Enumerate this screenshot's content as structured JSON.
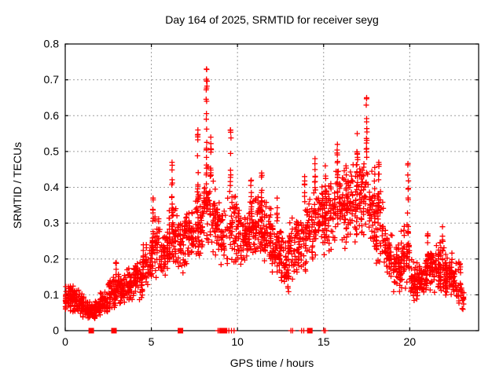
{
  "chart_data": {
    "type": "scatter",
    "title": "Day 164 of 2025, SRMTID for receiver seyg",
    "xlabel": "GPS time / hours",
    "ylabel": "SRMTID / TECUs",
    "xlim": [
      0,
      24
    ],
    "ylim": [
      0,
      0.8
    ],
    "x_ticks": [
      0,
      5,
      10,
      15,
      20
    ],
    "y_ticks": [
      "0",
      "0.1",
      "0.2",
      "0.3",
      "0.4",
      "0.5",
      "0.6",
      "0.7",
      "0.8"
    ],
    "grid": true,
    "legend": "none",
    "marker": "plus",
    "point_color": "#ff0000",
    "grid_color": "#9e9e9e",
    "axis_color": "#000000",
    "background_color": "#ffffff",
    "density_bins": [
      [
        0.0,
        0.5,
        65,
        0.05,
        0.13
      ],
      [
        0.5,
        1.0,
        65,
        0.04,
        0.12
      ],
      [
        1.0,
        1.5,
        55,
        0.03,
        0.1
      ],
      [
        1.5,
        2.0,
        50,
        0.03,
        0.09
      ],
      [
        2.0,
        2.5,
        55,
        0.04,
        0.11
      ],
      [
        2.5,
        3.0,
        55,
        0.05,
        0.15
      ],
      [
        3.0,
        3.5,
        55,
        0.07,
        0.17
      ],
      [
        3.5,
        4.0,
        55,
        0.08,
        0.18
      ],
      [
        4.0,
        4.5,
        55,
        0.08,
        0.2
      ],
      [
        4.5,
        5.0,
        55,
        0.1,
        0.26
      ],
      [
        5.0,
        5.5,
        55,
        0.14,
        0.33
      ],
      [
        5.5,
        6.0,
        55,
        0.15,
        0.3
      ],
      [
        6.0,
        6.5,
        55,
        0.17,
        0.36
      ],
      [
        6.5,
        7.0,
        55,
        0.16,
        0.32
      ],
      [
        7.0,
        7.5,
        55,
        0.17,
        0.35
      ],
      [
        7.5,
        8.0,
        55,
        0.19,
        0.4
      ],
      [
        8.0,
        8.5,
        50,
        0.24,
        0.46
      ],
      [
        8.5,
        9.0,
        50,
        0.2,
        0.42
      ],
      [
        9.0,
        9.5,
        35,
        0.15,
        0.38
      ],
      [
        9.5,
        10.0,
        45,
        0.17,
        0.42
      ],
      [
        10.0,
        10.5,
        55,
        0.18,
        0.35
      ],
      [
        10.5,
        11.0,
        55,
        0.19,
        0.37
      ],
      [
        11.0,
        11.5,
        55,
        0.2,
        0.4
      ],
      [
        11.5,
        12.0,
        55,
        0.17,
        0.37
      ],
      [
        12.0,
        12.5,
        55,
        0.12,
        0.33
      ],
      [
        12.5,
        13.0,
        55,
        0.09,
        0.3
      ],
      [
        13.0,
        13.5,
        45,
        0.14,
        0.33
      ],
      [
        13.5,
        14.0,
        50,
        0.15,
        0.36
      ],
      [
        14.0,
        14.5,
        50,
        0.17,
        0.4
      ],
      [
        14.5,
        15.0,
        50,
        0.2,
        0.42
      ],
      [
        15.0,
        15.5,
        50,
        0.2,
        0.43
      ],
      [
        15.5,
        16.0,
        50,
        0.22,
        0.46
      ],
      [
        16.0,
        16.5,
        50,
        0.22,
        0.45
      ],
      [
        16.5,
        17.0,
        50,
        0.24,
        0.48
      ],
      [
        17.0,
        17.5,
        50,
        0.25,
        0.5
      ],
      [
        17.5,
        18.0,
        50,
        0.22,
        0.47
      ],
      [
        18.0,
        18.5,
        50,
        0.15,
        0.43
      ],
      [
        18.5,
        19.0,
        50,
        0.11,
        0.3
      ],
      [
        19.0,
        19.5,
        50,
        0.1,
        0.25
      ],
      [
        19.5,
        20.0,
        50,
        0.1,
        0.3
      ],
      [
        20.0,
        20.5,
        55,
        0.08,
        0.2
      ],
      [
        20.5,
        21.0,
        55,
        0.09,
        0.2
      ],
      [
        21.0,
        21.5,
        55,
        0.1,
        0.24
      ],
      [
        21.5,
        22.0,
        55,
        0.09,
        0.26
      ],
      [
        22.0,
        22.5,
        55,
        0.08,
        0.22
      ],
      [
        22.5,
        23.0,
        45,
        0.06,
        0.2
      ],
      [
        23.0,
        23.15,
        12,
        0.05,
        0.12
      ]
    ],
    "spike_columns": [
      [
        2.95,
        0.12,
        0.19,
        8
      ],
      [
        5.1,
        0.22,
        0.37,
        10
      ],
      [
        6.2,
        0.32,
        0.47,
        12
      ],
      [
        7.7,
        0.36,
        0.56,
        14
      ],
      [
        8.2,
        0.4,
        0.73,
        22
      ],
      [
        8.45,
        0.42,
        0.54,
        10
      ],
      [
        9.6,
        0.4,
        0.56,
        10
      ],
      [
        10.8,
        0.32,
        0.42,
        8
      ],
      [
        11.4,
        0.33,
        0.44,
        10
      ],
      [
        12.3,
        0.3,
        0.37,
        6
      ],
      [
        13.9,
        0.33,
        0.43,
        8
      ],
      [
        14.5,
        0.35,
        0.48,
        10
      ],
      [
        15.1,
        0.35,
        0.46,
        8
      ],
      [
        15.8,
        0.38,
        0.52,
        12
      ],
      [
        16.3,
        0.36,
        0.46,
        8
      ],
      [
        16.95,
        0.4,
        0.55,
        12
      ],
      [
        17.5,
        0.44,
        0.65,
        16
      ],
      [
        18.2,
        0.33,
        0.47,
        12
      ],
      [
        19.9,
        0.2,
        0.466,
        14
      ],
      [
        21.05,
        0.18,
        0.27,
        8
      ],
      [
        21.9,
        0.18,
        0.29,
        8
      ]
    ],
    "zero_markers": {
      "squares_hours": [
        1.51,
        2.83,
        6.69,
        9.1,
        9.25,
        14.2
      ],
      "plus_hours": [
        8.87,
        8.95,
        9.5,
        9.65,
        9.8,
        13.1,
        13.2,
        13.72,
        13.85,
        15.02,
        15.1
      ]
    }
  }
}
